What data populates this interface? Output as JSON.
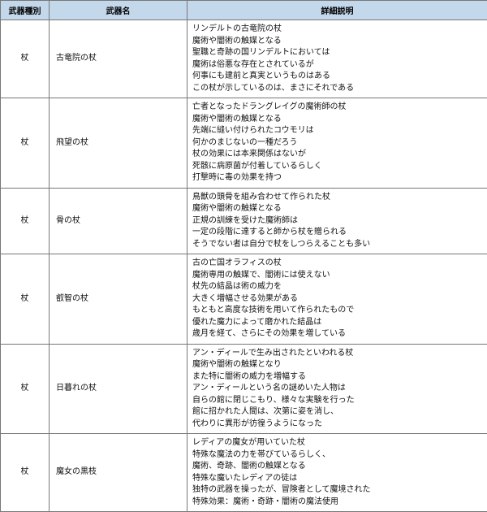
{
  "headers": {
    "type": "武器種別",
    "name": "武器名",
    "desc": "詳細説明"
  },
  "rows": [
    {
      "type": "杖",
      "name": "古竜院の杖",
      "desc": [
        "リンデルトの古竜院の杖",
        "魔術や闇術の触媒となる",
        "聖職と奇跡の国リンデルトにおいては",
        "魔術は俗悪な存在とされているが",
        "何事にも建前と真実というものはある",
        "この杖が示しているのは、まさにそれである"
      ]
    },
    {
      "type": "杖",
      "name": "飛望の杖",
      "desc": [
        "亡者となったドラングレイグの魔術師の杖",
        "魔術や闇術の触媒となる",
        "先端に縫い付けられたコウモリは",
        "何かのまじないの一種だろう",
        "杖の効果には本来関係はないが",
        "死骸に病原菌が付着しているらしく",
        "打撃時に毒の効果を持つ"
      ]
    },
    {
      "type": "杖",
      "name": "骨の杖",
      "desc": [
        "鳥獣の頭骨を組み合わせて作られた杖",
        "魔術や闇術の触媒となる",
        "正規の訓練を受けた魔術師は",
        "一定の段階に達すると師から杖を贈られる",
        "そうでない者は自分で杖をしつらえることも多い"
      ]
    },
    {
      "type": "杖",
      "name": "叡智の杖",
      "desc": [
        "古の亡国オラフィスの杖",
        "魔術専用の触媒で、闇術には使えない",
        "杖先の結晶は術の威力を",
        "大きく増幅させる効果がある",
        "もともと高度な技術を用いて作られたもので",
        "優れた魔力によって磨かれた結晶は",
        "歳月を経て、さらにその効果を増している"
      ]
    },
    {
      "type": "杖",
      "name": "日暮れの杖",
      "desc": [
        "アン・ディールで生み出されたといわれる杖",
        "魔術や闇術の触媒となり",
        "また特に闇術の威力を増幅する",
        "アン・ディールという名の謎めいた人物は",
        "自らの館に閉じこもり、様々な実験を行った",
        "館に招かれた人間は、次第に姿を消し、",
        "代わりに異形が彷徨うようになった"
      ]
    },
    {
      "type": "杖",
      "name": "魔女の黒枝",
      "desc": [
        "レディアの魔女が用いていた杖",
        "特殊な魔法の力を帯びているらしく、",
        "魔術、奇跡、闇術の触媒となる",
        "特殊な魔いたレディアの徒は",
        "独特の武器を操ったが、冒険者として魔境された",
        "特殊効果：魔術・奇跡・闇術の魔法使用"
      ]
    }
  ]
}
